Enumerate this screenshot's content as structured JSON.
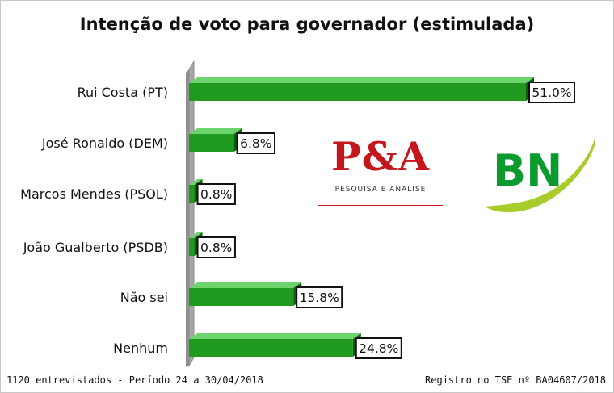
{
  "chart_data": {
    "type": "bar",
    "orientation": "horizontal",
    "title": "Intenção de voto para governador (estimulada)",
    "categories": [
      "Rui Costa (PT)",
      "José Ronaldo (DEM)",
      "Marcos Mendes (PSOL)",
      "João Gualberto (PSDB)",
      "Não sei",
      "Nenhum"
    ],
    "values": [
      51.0,
      6.8,
      0.8,
      0.8,
      15.8,
      24.8
    ],
    "value_labels": [
      "51.0%",
      "6.8%",
      "0.8%",
      "0.8%",
      "15.8%",
      "24.8%"
    ],
    "xlim": [
      0,
      51
    ],
    "grid": false,
    "legend": "none",
    "colors": {
      "bar": "#1f9a1f",
      "bar_top": "#6dd36d",
      "bar_side": "#0d5e0d",
      "wall": "#a6a6a6"
    }
  },
  "logos": {
    "pa": {
      "main": "P&A",
      "sub": "PESQUISA E ANALISE",
      "color": "#c4161c"
    },
    "bn": {
      "text": "BN",
      "green": "#0a9a2e",
      "swoosh": "#a8cc2c"
    }
  },
  "footer": {
    "left": "1120 entrevistados - Período 24 a 30/04/2018",
    "right": "Registro no TSE nº BA04607/2018"
  }
}
